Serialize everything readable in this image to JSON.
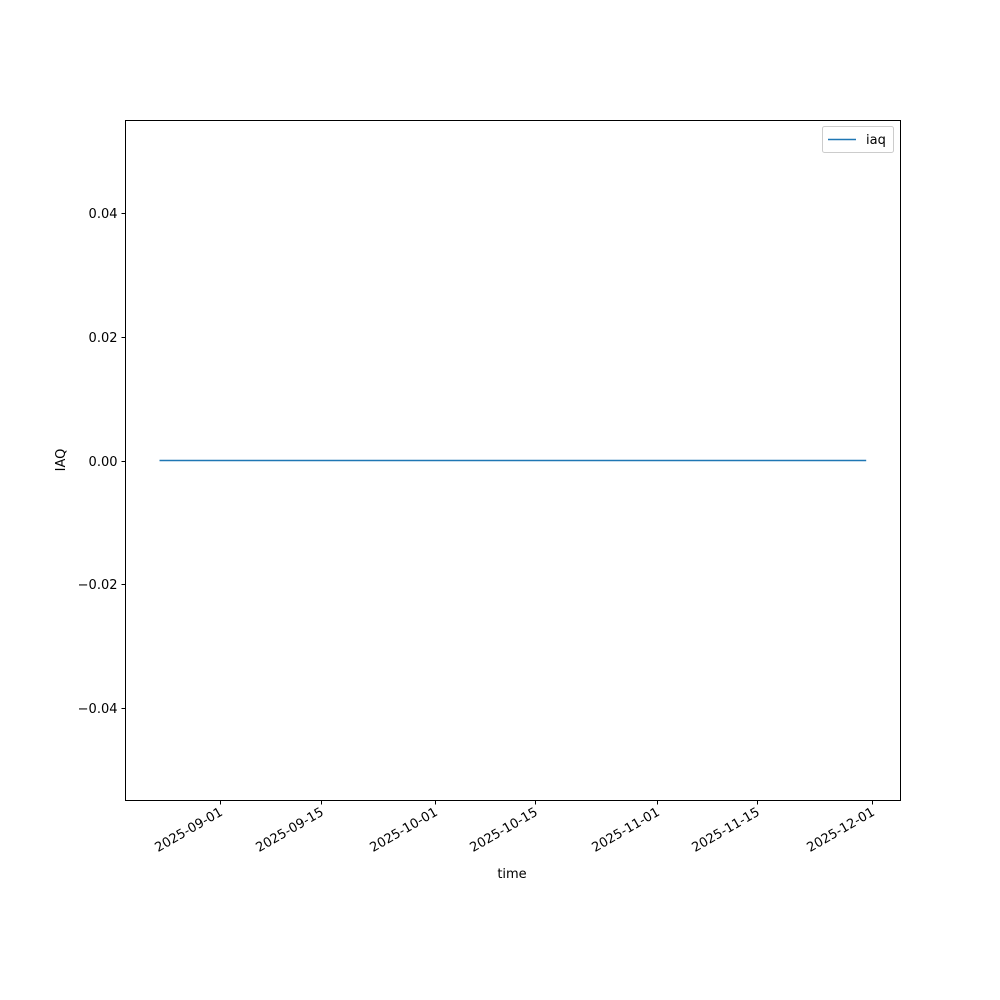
{
  "chart_data": {
    "type": "line",
    "title": "",
    "xlabel": "time",
    "ylabel": "IAQ",
    "x_ticks": [
      "2025-09-01",
      "2025-09-15",
      "2025-10-01",
      "2025-10-15",
      "2025-11-01",
      "2025-11-15",
      "2025-12-01"
    ],
    "y_ticks": [
      0.04,
      0.02,
      0.0,
      -0.02,
      -0.04
    ],
    "y_tick_labels": [
      "0.04",
      "0.02",
      "0.00",
      "−0.02",
      "−0.04"
    ],
    "ylim": [
      -0.055,
      0.055
    ],
    "xlim": [
      "2025-08-18T18:00",
      "2025-12-05T00:00"
    ],
    "grid": false,
    "legend": {
      "position": "top-right",
      "entries": [
        "iaq"
      ]
    },
    "series": [
      {
        "name": "iaq",
        "color": "#1f77b4",
        "x": [
          "2025-08-23T12:00",
          "2025-11-30T05:00"
        ],
        "y": [
          0,
          0
        ]
      }
    ]
  }
}
